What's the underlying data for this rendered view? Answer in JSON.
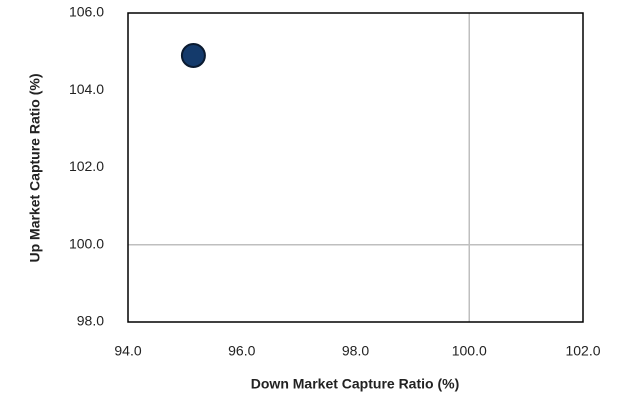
{
  "chart_data": {
    "type": "scatter",
    "x_label": "Down Market Capture Ratio (%)",
    "y_label": "Up Market Capture Ratio (%)",
    "x": [
      95.15
    ],
    "values": [
      104.9
    ],
    "color": "#143a6b",
    "xlim": [
      94,
      102
    ],
    "ylim": [
      98,
      106
    ],
    "xticks": [
      {
        "value": 94,
        "label": "94.0"
      },
      {
        "value": 96,
        "label": "96.0"
      },
      {
        "value": 98,
        "label": "98.0"
      },
      {
        "value": 100,
        "label": "100.0"
      },
      {
        "value": 102,
        "label": "102.0"
      }
    ],
    "yticks": [
      {
        "value": 98,
        "label": "98.0"
      },
      {
        "value": 100,
        "label": "100.0"
      },
      {
        "value": 102,
        "label": "102.0"
      },
      {
        "value": 104,
        "label": "104.0"
      },
      {
        "value": 106,
        "label": "106.0"
      }
    ],
    "reference_lines": {
      "x": 100,
      "y": 100
    },
    "grid": false
  }
}
